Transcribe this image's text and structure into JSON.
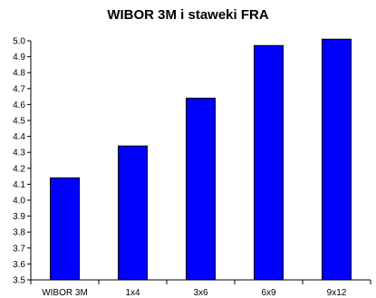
{
  "chart_data": {
    "type": "bar",
    "title": "WIBOR 3M i staweki FRA",
    "categories": [
      "WIBOR 3M",
      "1x4",
      "3x6",
      "6x9",
      "9x12"
    ],
    "values": [
      4.14,
      4.34,
      4.64,
      4.97,
      5.01
    ],
    "ylim": [
      3.5,
      5.0
    ],
    "yticks": [
      "3.5",
      "3.6",
      "3.7",
      "3.8",
      "3.9",
      "4.0",
      "4.1",
      "4.2",
      "4.3",
      "4.4",
      "4.5",
      "4.6",
      "4.7",
      "4.8",
      "4.9",
      "5.0"
    ],
    "xlabel": "",
    "ylabel": "",
    "grid": false,
    "bar_color": "#0000ff",
    "bar_outline_color": "#000000"
  }
}
